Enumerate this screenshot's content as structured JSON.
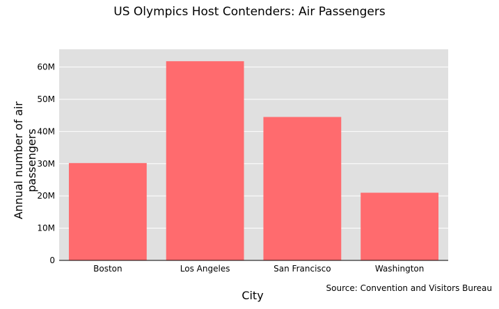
{
  "chart_data": {
    "type": "bar",
    "title": "US Olympics Host Contenders: Air Passengers",
    "xlabel": "City",
    "ylabel": "Annual number of air passengers",
    "categories": [
      "Boston",
      "Los Angeles",
      "San Francisco",
      "Washington"
    ],
    "values": [
      30200000,
      61800000,
      44500000,
      21000000
    ],
    "ylim": [
      0,
      65500000
    ],
    "yticks": [
      0,
      10000000,
      20000000,
      30000000,
      40000000,
      50000000,
      60000000
    ],
    "ytick_labels": [
      "0",
      "10M",
      "20M",
      "30M",
      "40M",
      "50M",
      "60M"
    ],
    "grid": true,
    "annotation": "Source: Convention and Visitors Bureau",
    "colors": {
      "bar": "#ff6b6e",
      "plot_bg": "#e0e0e0",
      "grid": "#ffffff"
    }
  }
}
